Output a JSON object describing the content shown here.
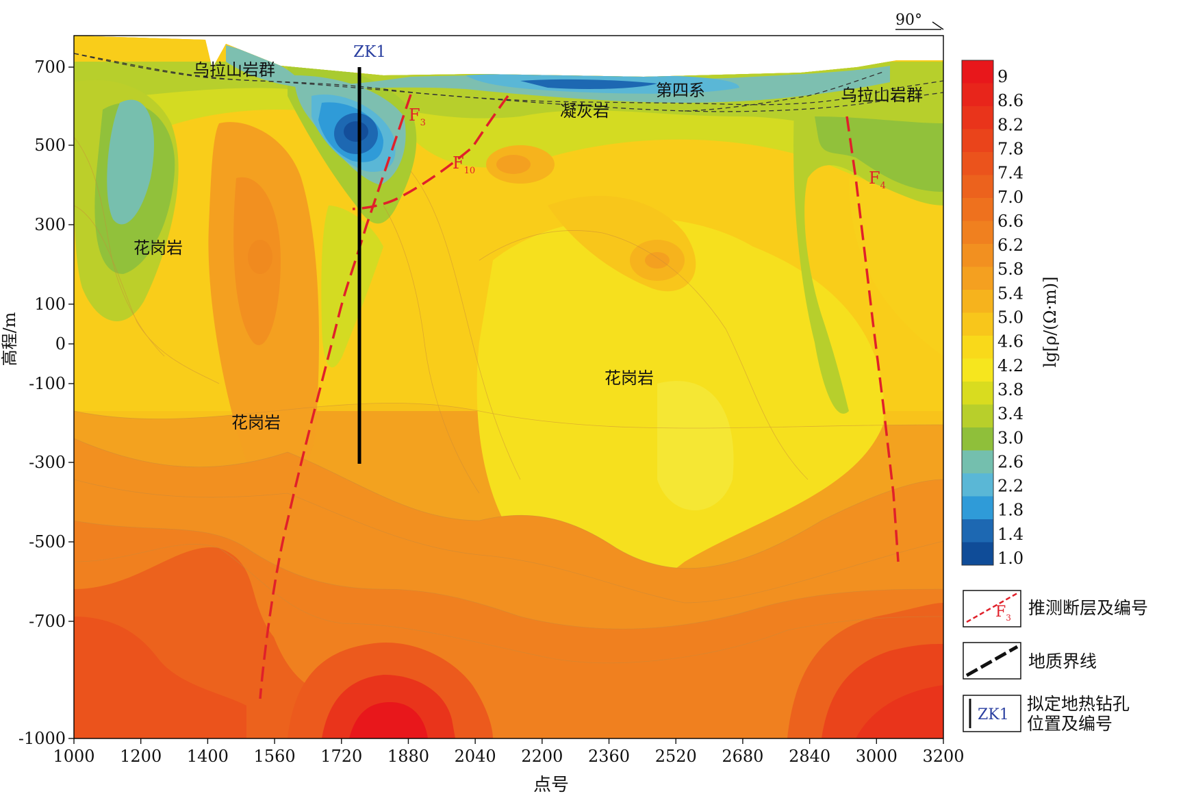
{
  "chart_data": {
    "type": "heatmap",
    "title": "",
    "xlabel": "点号",
    "ylabel": "高程/m",
    "xlim": [
      1000,
      3200
    ],
    "ylim": [
      -1000,
      790
    ],
    "x_ticks": [
      "1000",
      "1200",
      "1400",
      "1560",
      "1720",
      "1880",
      "2040",
      "2200",
      "2360",
      "2520",
      "2680",
      "2840",
      "3000",
      "3200"
    ],
    "x_tick_values": [
      1000,
      1200,
      1400,
      1560,
      1720,
      1880,
      2040,
      2200,
      2360,
      2520,
      2680,
      2840,
      3000,
      3200
    ],
    "y_ticks": [
      "700",
      "500",
      "300",
      "100",
      "0",
      "-100",
      "-300",
      "-500",
      "-700",
      "-1000"
    ],
    "y_tick_values": [
      700,
      500,
      300,
      100,
      0,
      -100,
      -300,
      -500,
      -700,
      -1000
    ],
    "colorbar": {
      "label": "lg[ρ/(Ω·m)]",
      "range": [
        1.0,
        9.0
      ],
      "ticks": [
        "9",
        "8.6",
        "8.2",
        "7.8",
        "7.4",
        "7.0",
        "6.6",
        "6.2",
        "5.8",
        "5.4",
        "5.0",
        "4.6",
        "4.2",
        "3.8",
        "3.4",
        "3.0",
        "2.6",
        "2.2",
        "1.8",
        "1.4",
        "1.0"
      ],
      "colors": [
        "#e8171b",
        "#e8251b",
        "#e9341b",
        "#ea441b",
        "#eb531c",
        "#ec621d",
        "#ee711e",
        "#f0801f",
        "#f29020",
        "#f4a020",
        "#f6b31d",
        "#f8c61b",
        "#f9d91a",
        "#f6e61e",
        "#d9dc1f",
        "#b8cf2b",
        "#8fbf3a",
        "#74bfae",
        "#5ab7d6",
        "#2f9bd8",
        "#1d68b2",
        "#0f4c98"
      ]
    },
    "annotations": {
      "top_direction": "90°",
      "borehole_label": "ZK1",
      "faults": [
        "F3",
        "F10",
        "F4"
      ],
      "formations": [
        "乌拉山岩群",
        "第四系",
        "凝灰岩",
        "乌拉山岩群",
        "花岗岩",
        "花岗岩",
        "花岗岩"
      ]
    },
    "legend": {
      "placement": "right",
      "items": [
        {
          "label": "推测断层及编号",
          "symbol": "F3"
        },
        {
          "label": "地质界线"
        },
        {
          "label_line1": "拟定地热钻孔",
          "label_line2": "位置及编号",
          "symbol": "ZK1"
        }
      ]
    }
  },
  "colors": {
    "fault": "#e0202a",
    "borehole": "#000000",
    "blue_text": "#2a3fa0",
    "fault_text": "#e0202a"
  }
}
